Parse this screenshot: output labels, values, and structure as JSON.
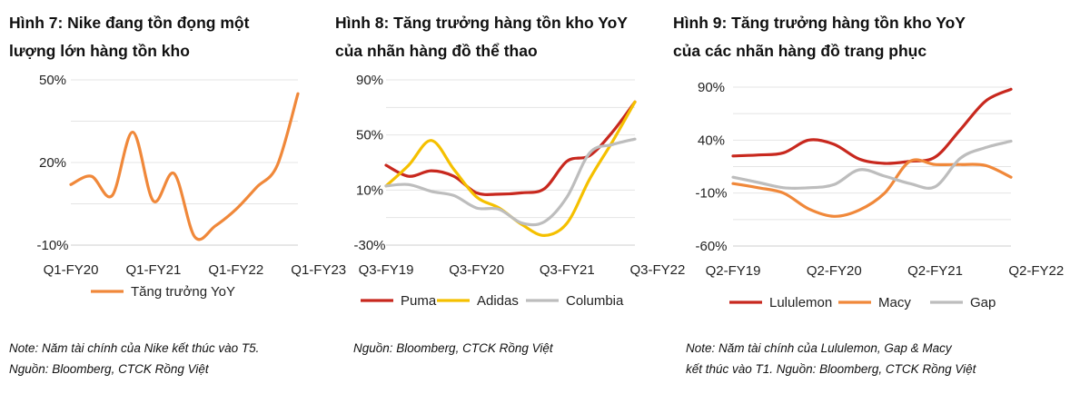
{
  "panels": [
    {
      "title": "Hình 7: Nike đang tồn đọng một\nlượng lớn hàng tồn kho",
      "note": "Note: Năm tài chính của Nike kết thúc vào T5.\nNguồn: Bloomberg, CTCK Rồng Việt"
    },
    {
      "title": "Hình 8: Tăng trưởng hàng tồn kho YoY\ncủa nhãn hàng đồ thể thao",
      "note": "Nguồn: Bloomberg, CTCK Rồng Việt"
    },
    {
      "title": "Hình 9: Tăng trưởng hàng tồn kho YoY\ncủa các nhãn hàng đồ trang phục",
      "note": "Note: Năm tài chính của Lululemon, Gap & Macy\nkết  thúc vào T1. Nguồn: Bloomberg, CTCK Rồng Việt"
    }
  ],
  "chart_data": [
    {
      "type": "line",
      "title": "Hình 7: Nike đang tồn đọng một lượng lớn hàng tồn kho",
      "y_tick_labels": [
        "50%",
        "20%",
        "-10%"
      ],
      "y_ticks": [
        50,
        20,
        -10
      ],
      "ylim": [
        -10,
        50
      ],
      "x_tick_labels": [
        "Q1-FY20",
        "Q1-FY21",
        "Q1-FY22",
        "Q1-FY23"
      ],
      "x_tick_index": [
        0,
        4,
        8,
        12
      ],
      "grid": true,
      "legend_position": "bottom",
      "series": [
        {
          "name": "Tăng trưởng YoY",
          "color": "#f0883a",
          "values": [
            12,
            15,
            8,
            31,
            6,
            16,
            -7,
            -3,
            3,
            11,
            19,
            45
          ]
        }
      ]
    },
    {
      "type": "line",
      "title": "Hình 8: Tăng trưởng hàng tồn kho YoY của nhãn hàng đồ thể thao",
      "y_tick_labels": [
        "90%",
        "50%",
        "10%",
        "-30%"
      ],
      "y_ticks": [
        90,
        50,
        10,
        -30
      ],
      "ylim": [
        -30,
        90
      ],
      "x_tick_labels": [
        "Q3-FY19",
        "Q3-FY20",
        "Q3-FY21",
        "Q3-FY22"
      ],
      "x_tick_index": [
        0,
        4,
        8,
        12
      ],
      "grid": true,
      "legend_position": "bottom",
      "series": [
        {
          "name": "Puma",
          "color": "#c8281e",
          "values": [
            28,
            20,
            24,
            20,
            8,
            7,
            8,
            11,
            31,
            35,
            52,
            74
          ]
        },
        {
          "name": "Adidas",
          "color": "#f5c000",
          "values": [
            13,
            28,
            46,
            25,
            5,
            -3,
            -15,
            -23,
            -14,
            18,
            45,
            74
          ]
        },
        {
          "name": "Columbia",
          "color": "#bdbdbd",
          "values": [
            13,
            14,
            9,
            6,
            -3,
            -4,
            -14,
            -13,
            5,
            37,
            43,
            47
          ]
        }
      ]
    },
    {
      "type": "line",
      "title": "Hình 9: Tăng trưởng hàng tồn kho YoY của các nhãn hàng đồ trang phục",
      "y_tick_labels": [
        "90%",
        "40%",
        "-10%",
        "-60%"
      ],
      "y_ticks": [
        90,
        40,
        -10,
        -60
      ],
      "ylim": [
        -60,
        90
      ],
      "x_tick_labels": [
        "Q2-FY19",
        "Q2-FY20",
        "Q2-FY21",
        "Q2-FY22"
      ],
      "x_tick_index": [
        0,
        4,
        8,
        12
      ],
      "grid": true,
      "legend_position": "bottom",
      "series": [
        {
          "name": "Lululemon",
          "color": "#c8281e",
          "values": [
            25,
            26,
            28,
            40,
            36,
            22,
            18,
            20,
            24,
            50,
            77,
            88
          ]
        },
        {
          "name": "Macy",
          "color": "#f0883a",
          "values": [
            -1,
            -5,
            -10,
            -25,
            -32,
            -26,
            -10,
            20,
            17,
            17,
            16,
            5
          ]
        },
        {
          "name": "Gap",
          "color": "#bdbdbd",
          "values": [
            5,
            0,
            -5,
            -5,
            -2,
            12,
            6,
            -1,
            -4,
            23,
            33,
            39
          ]
        }
      ]
    }
  ]
}
